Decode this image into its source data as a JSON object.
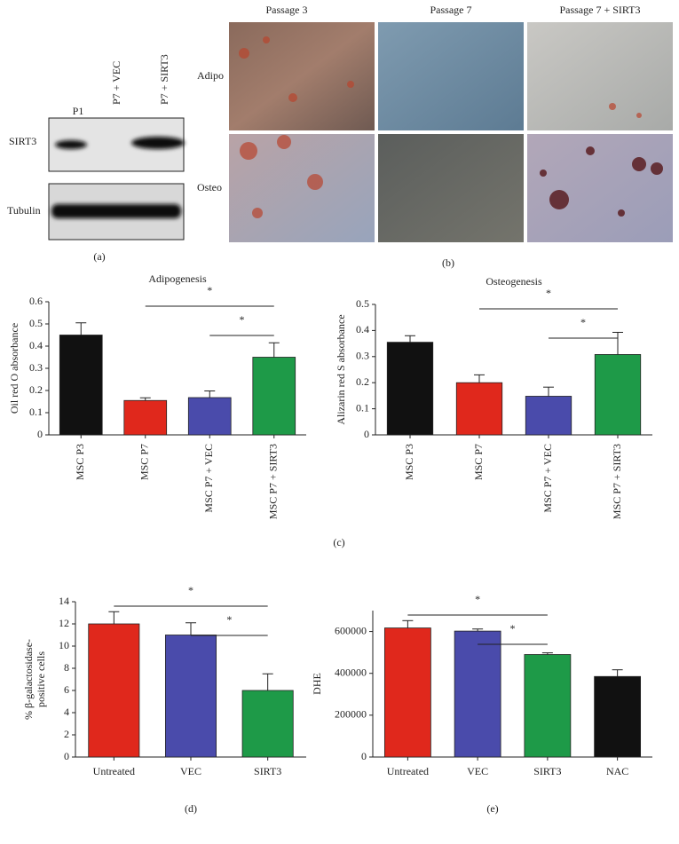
{
  "panel_labels": {
    "a": "(a)",
    "b": "(b)",
    "c": "(c)",
    "d": "(d)",
    "e": "(e)"
  },
  "blot": {
    "lanes": [
      "P1",
      "P7 + VEC",
      "P7 + SIRT3"
    ],
    "rows": [
      "SIRT3",
      "Tubulin"
    ]
  },
  "micrographs": {
    "columns": [
      "Passage 3",
      "Passage 7",
      "Passage 7 + SIRT3"
    ],
    "rows": [
      "Adipo",
      "Osteo"
    ]
  },
  "chart_data": [
    {
      "type": "bar",
      "title": "Adipogenesis",
      "ylabel": [
        "Oil red O absorbance"
      ],
      "categories": [
        "MSC P3",
        "MSC P7",
        "MSC P7 + VEC",
        "MSC P7 + SIRT3"
      ],
      "values": [
        0.45,
        0.155,
        0.168,
        0.35
      ],
      "errors": [
        0.055,
        0.012,
        0.03,
        0.065
      ],
      "colors": [
        "#111111",
        "#e0281c",
        "#4a4bab",
        "#1e9a48"
      ],
      "ylim": [
        0,
        0.6
      ],
      "yticks": [
        0,
        0.1,
        0.2,
        0.3,
        0.4,
        0.5,
        0.6
      ],
      "xlabel_rotation": 90,
      "annotations": [
        {
          "text": "*",
          "between": [
            "MSC P7",
            "MSC P7 + SIRT3"
          ]
        },
        {
          "text": "*",
          "between": [
            "MSC P7 + VEC",
            "MSC P7 + SIRT3"
          ]
        }
      ]
    },
    {
      "type": "bar",
      "title": "Osteogenesis",
      "ylabel": [
        "Alizarin red S absorbance"
      ],
      "categories": [
        "MSC P3",
        "MSC P7",
        "MSC P7 + VEC",
        "MSC P7 + SIRT3"
      ],
      "values": [
        0.355,
        0.2,
        0.148,
        0.308
      ],
      "errors": [
        0.025,
        0.03,
        0.035,
        0.085
      ],
      "colors": [
        "#111111",
        "#e0281c",
        "#4a4bab",
        "#1e9a48"
      ],
      "ylim": [
        0,
        0.5
      ],
      "yticks": [
        0,
        0.1,
        0.2,
        0.3,
        0.4,
        0.5
      ],
      "xlabel_rotation": 90,
      "annotations": [
        {
          "text": "*",
          "between": [
            "MSC P7",
            "MSC P7 + SIRT3"
          ]
        },
        {
          "text": "*",
          "between": [
            "MSC P7 + VEC",
            "MSC P7 + SIRT3"
          ]
        }
      ]
    },
    {
      "type": "bar",
      "ylabel": [
        "% β-galactosidase-",
        "positive cells"
      ],
      "categories": [
        "Untreated",
        "VEC",
        "SIRT3"
      ],
      "values": [
        12,
        11,
        6
      ],
      "errors": [
        1.1,
        1.1,
        1.5
      ],
      "colors": [
        "#e0281c",
        "#4a4bab",
        "#1e9a48"
      ],
      "ylim": [
        0,
        14
      ],
      "yticks": [
        0,
        2,
        4,
        6,
        8,
        10,
        12,
        14
      ],
      "xlabel_rotation": 0,
      "annotations": [
        {
          "text": "*",
          "between": [
            "Untreated",
            "SIRT3"
          ]
        },
        {
          "text": "*",
          "between": [
            "VEC",
            "SIRT3"
          ]
        }
      ]
    },
    {
      "type": "bar",
      "ylabel": [
        "DHE"
      ],
      "categories": [
        "Untreated",
        "VEC",
        "SIRT3",
        "NAC"
      ],
      "values": [
        617000,
        602000,
        490000,
        385000
      ],
      "errors": [
        35000,
        10000,
        8000,
        32000
      ],
      "colors": [
        "#e0281c",
        "#4a4bab",
        "#1e9a48",
        "#111111"
      ],
      "ylim": [
        0,
        700000
      ],
      "yticks": [
        0,
        200000,
        400000,
        600000
      ],
      "xlabel_rotation": 0,
      "annotations": [
        {
          "text": "*",
          "between": [
            "Untreated",
            "SIRT3"
          ]
        },
        {
          "text": "*",
          "between": [
            "VEC",
            "SIRT3"
          ]
        }
      ]
    }
  ]
}
